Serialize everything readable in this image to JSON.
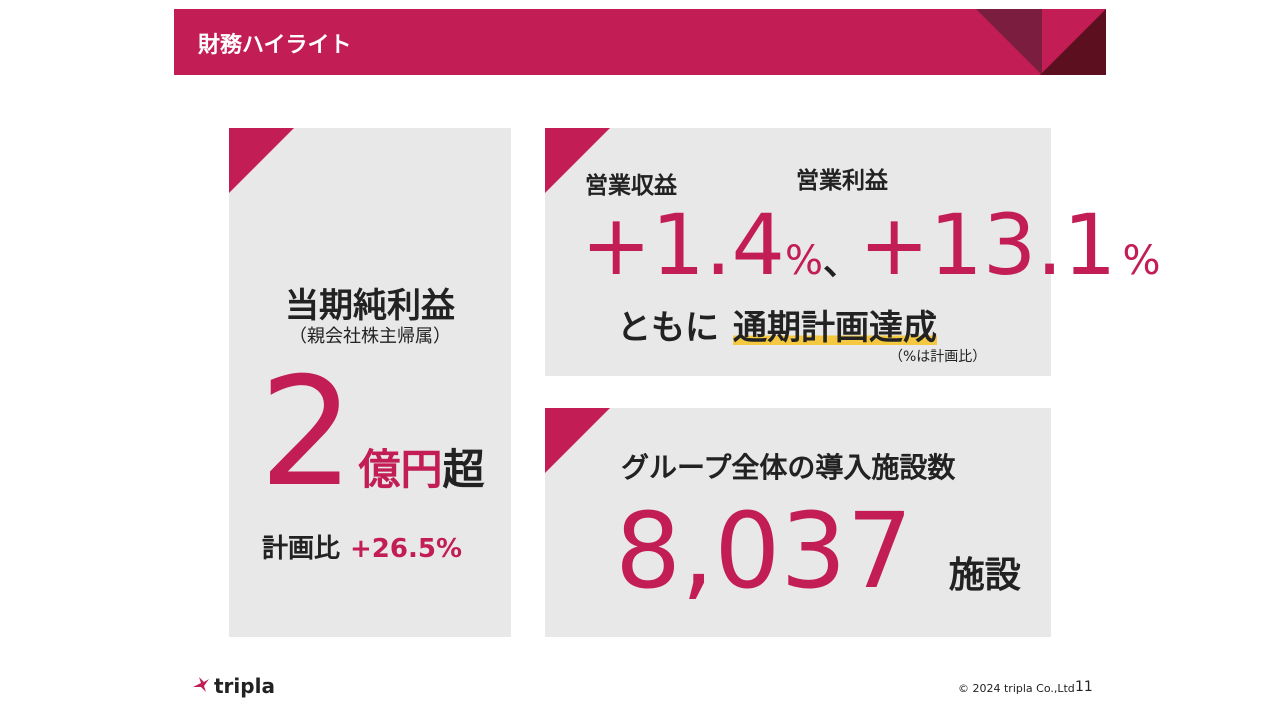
{
  "header": {
    "title": "財務ハイライト"
  },
  "net_income": {
    "title": "当期純利益",
    "subtitle": "（親会社株主帰属）",
    "value": "2",
    "unit": "億円",
    "suffix": "超",
    "plan_label": "計画比",
    "plan_value": "+26.5%"
  },
  "operating": {
    "labels": [
      "営業収益",
      "営業利益"
    ],
    "values": [
      {
        "value": "+1.4",
        "unit": "%"
      },
      {
        "value": "+13.1",
        "unit": "%"
      }
    ],
    "separator": "、",
    "text": "ともに",
    "highlight": "通期計画達成",
    "note": "（%は計画比）"
  },
  "facilities": {
    "title": "グループ全体の導入施設数",
    "value": "8,037",
    "unit": "施設"
  },
  "footer": {
    "logo": "tripla",
    "copyright": "© 2024 tripla Co.,Ltd",
    "page": "11"
  }
}
